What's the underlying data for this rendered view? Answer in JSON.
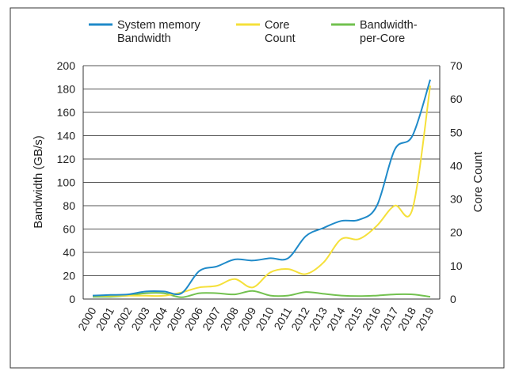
{
  "chart_data": {
    "type": "line",
    "title": "",
    "x": [
      "2000",
      "2001",
      "2002",
      "2003",
      "2004",
      "2005",
      "2006",
      "2007",
      "2008",
      "2009",
      "2010",
      "2011",
      "2012",
      "2013",
      "2014",
      "2015",
      "2016",
      "2017",
      "2018",
      "2019"
    ],
    "xlabel": "",
    "ylabel_left": "Bandwidth (GB/s)",
    "ylabel_right": "Core Count",
    "ylim_left": [
      0,
      200
    ],
    "ylim_right": [
      0,
      70
    ],
    "yticks_left": [
      "0",
      "20",
      "40",
      "60",
      "80",
      "100",
      "120",
      "140",
      "160",
      "180",
      "200"
    ],
    "yticks_right": [
      "0",
      "10",
      "20",
      "30",
      "40",
      "50",
      "60",
      "70"
    ],
    "grid": "horizontal",
    "legend_position": "top",
    "series": [
      {
        "name_lines": [
          "System memory",
          "Bandwidth"
        ],
        "axis": "left",
        "color": "#1f8ac9",
        "values": [
          3,
          3.5,
          4,
          6.5,
          6.5,
          5,
          24,
          28,
          34,
          33,
          35,
          35,
          54,
          61,
          67,
          68,
          80,
          128,
          140,
          188
        ]
      },
      {
        "name_lines": [
          "Core",
          "Count"
        ],
        "axis": "right",
        "color": "#f5e03a",
        "values": [
          1,
          1,
          1,
          1,
          1,
          2,
          3.5,
          4,
          6,
          3.5,
          8,
          9,
          7.5,
          11,
          18,
          18,
          22,
          28,
          27,
          64
        ]
      },
      {
        "name_lines": [
          "Bandwidth-",
          "per-Core"
        ],
        "axis": "left",
        "color": "#72c14f",
        "values": [
          2,
          2,
          3,
          5,
          5,
          1.5,
          5,
          5,
          4,
          7,
          3,
          3,
          6,
          4.5,
          3,
          2.5,
          3,
          4,
          4,
          2
        ]
      }
    ]
  }
}
